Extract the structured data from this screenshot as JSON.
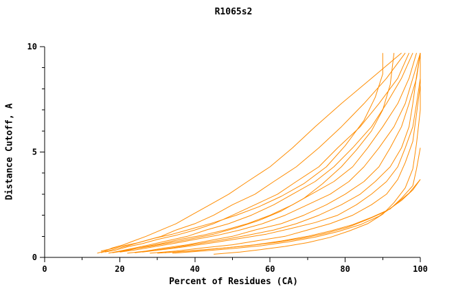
{
  "chart_data": {
    "type": "line",
    "title": "R1065s2",
    "xlabel": "Percent of Residues (CA)",
    "ylabel": "Distance Cutoff, A",
    "xlim": [
      0,
      100
    ],
    "ylim": [
      0,
      10
    ],
    "x_ticks": [
      0,
      20,
      40,
      60,
      80,
      100
    ],
    "y_ticks": [
      0,
      5,
      10
    ],
    "x_minor_ticks": [
      10,
      30,
      50,
      70,
      90
    ],
    "y_minor_ticks": [
      1,
      2,
      3,
      4,
      6,
      7,
      8,
      9
    ],
    "grid": false,
    "legend": "none",
    "line_color": "#ff8c00",
    "axis_color": "#000000",
    "background": "#ffffff",
    "series": [
      [
        [
          14,
          0.2
        ],
        [
          16,
          0.3
        ],
        [
          18,
          0.45
        ],
        [
          21,
          0.6
        ],
        [
          24,
          0.8
        ],
        [
          27,
          1.0
        ],
        [
          31,
          1.3
        ],
        [
          35,
          1.6
        ],
        [
          39,
          2.0
        ],
        [
          44,
          2.5
        ],
        [
          49,
          3.0
        ],
        [
          54,
          3.6
        ],
        [
          60,
          4.3
        ],
        [
          66,
          5.2
        ],
        [
          72,
          6.2
        ],
        [
          79,
          7.3
        ],
        [
          87,
          8.5
        ],
        [
          95,
          9.7
        ]
      ],
      [
        [
          15,
          0.22
        ],
        [
          17,
          0.32
        ],
        [
          20,
          0.45
        ],
        [
          23,
          0.6
        ],
        [
          27,
          0.8
        ],
        [
          31,
          1.0
        ],
        [
          35,
          1.3
        ],
        [
          40,
          1.6
        ],
        [
          45,
          2.0
        ],
        [
          50,
          2.5
        ],
        [
          56,
          3.0
        ],
        [
          61,
          3.6
        ],
        [
          67,
          4.3
        ],
        [
          73,
          5.2
        ],
        [
          79,
          6.2
        ],
        [
          85,
          7.3
        ],
        [
          91,
          8.5
        ],
        [
          96,
          9.7
        ]
      ],
      [
        [
          16,
          0.25
        ],
        [
          19,
          0.35
        ],
        [
          22,
          0.5
        ],
        [
          26,
          0.65
        ],
        [
          30,
          0.85
        ],
        [
          35,
          1.05
        ],
        [
          40,
          1.3
        ],
        [
          45,
          1.6
        ],
        [
          50,
          2.0
        ],
        [
          56,
          2.5
        ],
        [
          62,
          3.0
        ],
        [
          67,
          3.6
        ],
        [
          73,
          4.3
        ],
        [
          78,
          5.2
        ],
        [
          84,
          6.2
        ],
        [
          89,
          7.3
        ],
        [
          94,
          8.5
        ],
        [
          97,
          9.7
        ]
      ],
      [
        [
          17,
          0.2
        ],
        [
          20,
          0.3
        ],
        [
          24,
          0.45
        ],
        [
          28,
          0.6
        ],
        [
          33,
          0.8
        ],
        [
          38,
          1.0
        ],
        [
          43,
          1.3
        ],
        [
          49,
          1.6
        ],
        [
          55,
          2.0
        ],
        [
          61,
          2.5
        ],
        [
          66,
          3.0
        ],
        [
          72,
          3.6
        ],
        [
          77,
          4.3
        ],
        [
          82,
          5.2
        ],
        [
          87,
          6.2
        ],
        [
          91,
          7.3
        ],
        [
          95,
          8.5
        ],
        [
          98,
          9.7
        ]
      ],
      [
        [
          18,
          0.22
        ],
        [
          22,
          0.33
        ],
        [
          26,
          0.48
        ],
        [
          31,
          0.65
        ],
        [
          36,
          0.85
        ],
        [
          42,
          1.05
        ],
        [
          48,
          1.3
        ],
        [
          54,
          1.6
        ],
        [
          60,
          2.0
        ],
        [
          66,
          2.5
        ],
        [
          71,
          3.0
        ],
        [
          77,
          3.6
        ],
        [
          82,
          4.3
        ],
        [
          86,
          5.2
        ],
        [
          90,
          6.2
        ],
        [
          94,
          7.3
        ],
        [
          97,
          8.5
        ],
        [
          99,
          9.7
        ]
      ],
      [
        [
          20,
          0.25
        ],
        [
          24,
          0.35
        ],
        [
          29,
          0.5
        ],
        [
          34,
          0.65
        ],
        [
          40,
          0.85
        ],
        [
          46,
          1.05
        ],
        [
          52,
          1.3
        ],
        [
          58,
          1.6
        ],
        [
          64,
          2.0
        ],
        [
          70,
          2.5
        ],
        [
          76,
          3.0
        ],
        [
          81,
          3.6
        ],
        [
          85,
          4.3
        ],
        [
          89,
          5.2
        ],
        [
          93,
          6.2
        ],
        [
          96,
          7.3
        ],
        [
          98,
          8.5
        ],
        [
          100,
          9.7
        ]
      ],
      [
        [
          22,
          0.2
        ],
        [
          27,
          0.3
        ],
        [
          32,
          0.45
        ],
        [
          38,
          0.6
        ],
        [
          44,
          0.8
        ],
        [
          50,
          1.0
        ],
        [
          56,
          1.3
        ],
        [
          63,
          1.6
        ],
        [
          69,
          2.0
        ],
        [
          75,
          2.5
        ],
        [
          80,
          3.0
        ],
        [
          85,
          3.6
        ],
        [
          89,
          4.3
        ],
        [
          92,
          5.2
        ],
        [
          95,
          6.2
        ],
        [
          97,
          7.3
        ],
        [
          99,
          8.5
        ],
        [
          100,
          9.7
        ]
      ],
      [
        [
          24,
          0.22
        ],
        [
          29,
          0.33
        ],
        [
          35,
          0.48
        ],
        [
          41,
          0.65
        ],
        [
          48,
          0.85
        ],
        [
          54,
          1.05
        ],
        [
          61,
          1.3
        ],
        [
          67,
          1.6
        ],
        [
          73,
          2.0
        ],
        [
          79,
          2.5
        ],
        [
          84,
          3.0
        ],
        [
          88,
          3.6
        ],
        [
          92,
          4.3
        ],
        [
          95,
          5.2
        ],
        [
          97,
          6.2
        ],
        [
          98,
          7.3
        ],
        [
          99,
          8.6
        ],
        [
          100,
          9.7
        ]
      ],
      [
        [
          26,
          0.25
        ],
        [
          32,
          0.38
        ],
        [
          38,
          0.52
        ],
        [
          45,
          0.7
        ],
        [
          52,
          0.9
        ],
        [
          59,
          1.1
        ],
        [
          65,
          1.35
        ],
        [
          72,
          1.65
        ],
        [
          78,
          2.0
        ],
        [
          83,
          2.5
        ],
        [
          87,
          3.0
        ],
        [
          91,
          3.6
        ],
        [
          94,
          4.3
        ],
        [
          96,
          5.2
        ],
        [
          98,
          6.2
        ],
        [
          99,
          7.3
        ],
        [
          100,
          8.5
        ],
        [
          100,
          9.7
        ]
      ],
      [
        [
          28,
          0.2
        ],
        [
          35,
          0.3
        ],
        [
          42,
          0.45
        ],
        [
          50,
          0.6
        ],
        [
          57,
          0.8
        ],
        [
          64,
          1.0
        ],
        [
          70,
          1.3
        ],
        [
          76,
          1.6
        ],
        [
          82,
          2.0
        ],
        [
          87,
          2.5
        ],
        [
          91,
          3.0
        ],
        [
          94,
          3.7
        ],
        [
          96,
          4.5
        ],
        [
          98,
          5.5
        ],
        [
          99,
          6.8
        ],
        [
          100,
          8.2
        ],
        [
          100,
          9.7
        ]
      ],
      [
        [
          30,
          0.2
        ],
        [
          38,
          0.3
        ],
        [
          46,
          0.42
        ],
        [
          54,
          0.55
        ],
        [
          62,
          0.72
        ],
        [
          69,
          0.92
        ],
        [
          75,
          1.15
        ],
        [
          81,
          1.45
        ],
        [
          86,
          1.8
        ],
        [
          91,
          2.2
        ],
        [
          95,
          2.7
        ],
        [
          98,
          3.2
        ],
        [
          100,
          3.7
        ]
      ],
      [
        [
          32,
          0.22
        ],
        [
          40,
          0.32
        ],
        [
          48,
          0.45
        ],
        [
          56,
          0.6
        ],
        [
          63,
          0.78
        ],
        [
          70,
          1.0
        ],
        [
          76,
          1.25
        ],
        [
          82,
          1.55
        ],
        [
          87,
          1.9
        ],
        [
          92,
          2.3
        ],
        [
          95,
          2.8
        ],
        [
          98,
          3.4
        ],
        [
          99,
          4.2
        ],
        [
          100,
          5.2
        ]
      ],
      [
        [
          45,
          0.15
        ],
        [
          52,
          0.25
        ],
        [
          58,
          0.38
        ],
        [
          64,
          0.52
        ],
        [
          70,
          0.7
        ],
        [
          76,
          0.95
        ],
        [
          81,
          1.25
        ],
        [
          86,
          1.6
        ],
        [
          90,
          2.05
        ],
        [
          93,
          2.6
        ],
        [
          96,
          3.3
        ],
        [
          98,
          4.2
        ],
        [
          99,
          5.4
        ],
        [
          100,
          7.0
        ],
        [
          100,
          9.7
        ]
      ],
      [
        [
          15,
          0.3
        ],
        [
          18,
          0.42
        ],
        [
          21,
          0.55
        ],
        [
          25,
          0.7
        ],
        [
          29,
          0.9
        ],
        [
          34,
          1.1
        ],
        [
          39,
          1.35
        ],
        [
          45,
          1.65
        ],
        [
          51,
          2.0
        ],
        [
          57,
          2.4
        ],
        [
          63,
          2.9
        ],
        [
          69,
          3.5
        ],
        [
          75,
          4.3
        ],
        [
          80,
          5.3
        ],
        [
          85,
          6.5
        ],
        [
          88,
          7.6
        ],
        [
          90,
          8.7
        ],
        [
          90,
          9.7
        ]
      ],
      [
        [
          19,
          0.25
        ],
        [
          23,
          0.38
        ],
        [
          28,
          0.52
        ],
        [
          33,
          0.68
        ],
        [
          39,
          0.88
        ],
        [
          45,
          1.1
        ],
        [
          51,
          1.4
        ],
        [
          57,
          1.75
        ],
        [
          63,
          2.2
        ],
        [
          69,
          2.8
        ],
        [
          74,
          3.5
        ],
        [
          79,
          4.3
        ],
        [
          83,
          5.1
        ],
        [
          87,
          6.0
        ],
        [
          90,
          7.0
        ],
        [
          92,
          8.2
        ],
        [
          93,
          9.7
        ]
      ],
      [
        [
          34,
          0.2
        ],
        [
          42,
          0.3
        ],
        [
          50,
          0.42
        ],
        [
          58,
          0.56
        ],
        [
          65,
          0.74
        ],
        [
          72,
          0.96
        ],
        [
          78,
          1.22
        ],
        [
          84,
          1.55
        ],
        [
          89,
          1.95
        ],
        [
          93,
          2.45
        ],
        [
          97,
          3.05
        ],
        [
          100,
          3.7
        ]
      ]
    ]
  }
}
